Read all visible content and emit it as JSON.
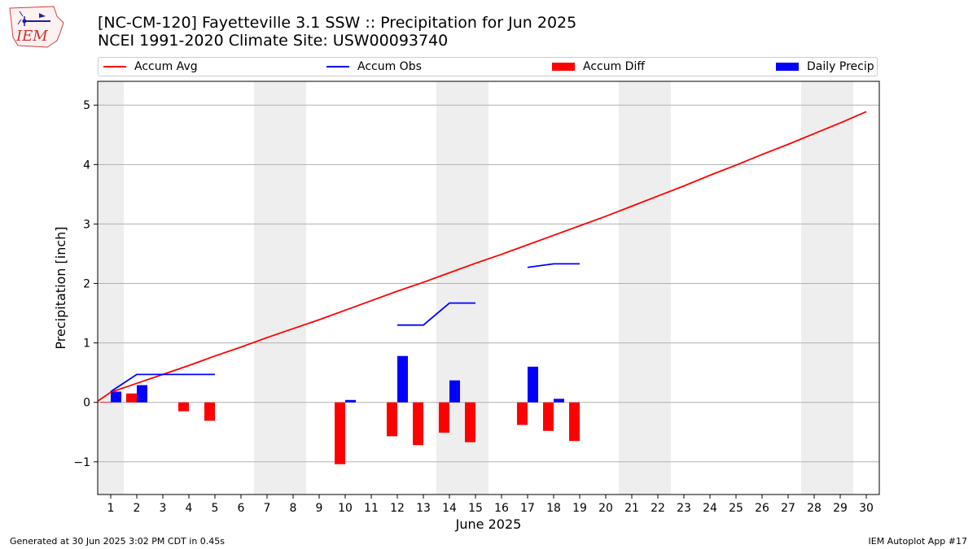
{
  "logo_text": "IEM",
  "title_line1": "[NC-CM-120] Fayetteville 3.1 SSW :: Precipitation for Jun 2025",
  "title_line2": "NCEI 1991-2020 Climate Site: USW00093740",
  "footer_left": "Generated at 30 Jun 2025 3:02 PM CDT in 0.45s",
  "footer_right": "IEM Autoplot App #17",
  "colors": {
    "avg": "#ff0000",
    "obs": "#0000ff",
    "diff": "#ff0000",
    "daily": "#0000ff",
    "weekend": "#eeeeee",
    "grid": "#b0b0b0"
  },
  "chart_data": {
    "type": "bar",
    "xlabel": "June 2025",
    "ylabel": "Precipitation [inch]",
    "xlim": [
      0.5,
      30.5
    ],
    "ylim": [
      -1.55,
      5.4
    ],
    "yticks": [
      -1,
      0,
      1,
      2,
      3,
      4,
      5
    ],
    "ytick_labels": [
      "−1",
      "0",
      "1",
      "2",
      "3",
      "4",
      "5"
    ],
    "days": [
      1,
      2,
      3,
      4,
      5,
      6,
      7,
      8,
      9,
      10,
      11,
      12,
      13,
      14,
      15,
      16,
      17,
      18,
      19,
      20,
      21,
      22,
      23,
      24,
      25,
      26,
      27,
      28,
      29,
      30
    ],
    "weekend_spans": [
      [
        0.5,
        1.5
      ],
      [
        6.5,
        8.5
      ],
      [
        13.5,
        15.5
      ],
      [
        20.5,
        22.5
      ],
      [
        27.5,
        29.5
      ]
    ],
    "grid": "horizontal",
    "legend_placement": "top, above plot",
    "series": [
      {
        "name": "Accum Avg",
        "kind": "line",
        "x": [
          0.5,
          1,
          2,
          3,
          4,
          5,
          6,
          7,
          8,
          9,
          10,
          11,
          12,
          13,
          14,
          15,
          16,
          17,
          18,
          19,
          20,
          21,
          22,
          23,
          24,
          25,
          26,
          27,
          28,
          29,
          30
        ],
        "values": [
          0.02,
          0.17,
          0.32,
          0.47,
          0.62,
          0.78,
          0.93,
          1.09,
          1.24,
          1.39,
          1.55,
          1.71,
          1.87,
          2.02,
          2.18,
          2.34,
          2.49,
          2.65,
          2.81,
          2.97,
          3.13,
          3.3,
          3.47,
          3.64,
          3.82,
          3.99,
          4.17,
          4.34,
          4.52,
          4.7,
          4.89
        ]
      },
      {
        "name": "Accum Obs",
        "kind": "line",
        "segments": [
          {
            "x": [
              1,
              2,
              3,
              4,
              5
            ],
            "values": [
              0.18,
              0.47,
              0.47,
              0.47,
              0.47
            ]
          },
          {
            "x": [
              12,
              13,
              14,
              15
            ],
            "values": [
              1.3,
              1.3,
              1.67,
              1.67
            ]
          },
          {
            "x": [
              17,
              18,
              19
            ],
            "values": [
              2.27,
              2.33,
              2.33
            ]
          }
        ]
      },
      {
        "name": "Accum Diff",
        "kind": "bar",
        "x": [
          1,
          2,
          4,
          5,
          10,
          12,
          13,
          14,
          15,
          17,
          18,
          19
        ],
        "values": [
          0.01,
          0.15,
          -0.15,
          -0.31,
          -1.04,
          -0.57,
          -0.72,
          -0.51,
          -0.67,
          -0.38,
          -0.48,
          -0.65
        ]
      },
      {
        "name": "Daily Precip",
        "kind": "bar",
        "x": [
          1,
          2,
          10,
          12,
          14,
          17,
          18
        ],
        "values": [
          0.18,
          0.29,
          0.04,
          0.78,
          0.37,
          0.6,
          0.06
        ]
      }
    ]
  }
}
